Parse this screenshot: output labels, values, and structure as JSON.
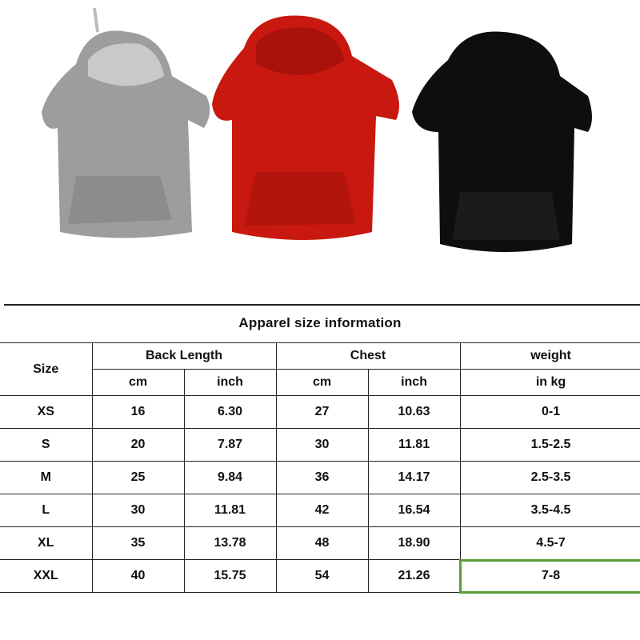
{
  "product_photo": {
    "items": [
      {
        "color": "#9a9a9a",
        "name": "grey hoodie"
      },
      {
        "color": "#c8180f",
        "name": "red hoodie"
      },
      {
        "color": "#0c0c0c",
        "name": "black hoodie"
      }
    ]
  },
  "table": {
    "title": "Apparel size information",
    "headers": {
      "size": "Size",
      "back_length": "Back Length",
      "chest": "Chest",
      "weight": "weight",
      "cm1": "cm",
      "inch1": "inch",
      "cm2": "cm",
      "inch2": "inch",
      "kg": "in kg"
    },
    "rows": [
      [
        "XS",
        "16",
        "6.30",
        "27",
        "10.63",
        "0-1"
      ],
      [
        "S",
        "20",
        "7.87",
        "30",
        "11.81",
        "1.5-2.5"
      ],
      [
        "M",
        "25",
        "9.84",
        "36",
        "14.17",
        "2.5-3.5"
      ],
      [
        "L",
        "30",
        "11.81",
        "42",
        "16.54",
        "3.5-4.5"
      ],
      [
        "XL",
        "35",
        "13.78",
        "48",
        "18.90",
        "4.5-7"
      ],
      [
        "XXL",
        "40",
        "15.75",
        "54",
        "21.26",
        "7-8"
      ]
    ],
    "highlight_color": "#5a9f3a"
  }
}
